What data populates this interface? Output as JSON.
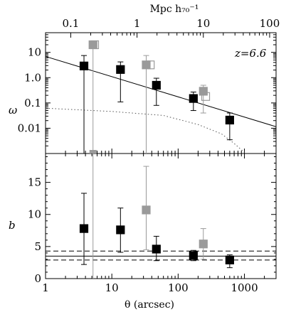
{
  "chart_data": [
    {
      "type": "scatter",
      "panel": "top",
      "title": "",
      "annotation": "z=6.6",
      "xlabel_top": "Mpc h₇₀⁻¹",
      "ylabel": "ω",
      "x_scale": "log",
      "y_scale": "log",
      "xlim_arcsec": [
        1,
        3000
      ],
      "ylim": [
        0.001,
        60
      ],
      "x_top_ticks": [
        "0.1",
        "1",
        "10",
        "100"
      ],
      "y_ticks": [
        "10",
        "1.0",
        "0.1",
        "0.01"
      ],
      "series": [
        {
          "marker": "filled-square-black",
          "points": [
            {
              "x": 3.8,
              "y": 2.9,
              "yerr_lo": 0.001,
              "yerr_hi": 7.5
            },
            {
              "x": 13.5,
              "y": 2.1,
              "yerr_lo": 0.11,
              "yerr_hi": 4.2
            },
            {
              "x": 47,
              "y": 0.5,
              "yerr_lo": 0.08,
              "yerr_hi": 0.95
            },
            {
              "x": 170,
              "y": 0.15,
              "yerr_lo": 0.05,
              "yerr_hi": 0.27
            },
            {
              "x": 600,
              "y": 0.021,
              "yerr_lo": 0.0035,
              "yerr_hi": 0.04
            }
          ]
        },
        {
          "marker": "filled-square-gray",
          "points": [
            {
              "x": 5.2,
              "y": 20,
              "yerr_lo": 0.001,
              "yerr_hi": 20
            },
            {
              "x": 33,
              "y": 3.2,
              "yerr_lo": 0.001,
              "yerr_hi": 7.5
            },
            {
              "x": 240,
              "y": 0.29,
              "yerr_lo": 0.04,
              "yerr_hi": 0.5
            }
          ]
        },
        {
          "marker": "open-square-gray",
          "points": [
            {
              "x": 5.5,
              "y": 20
            },
            {
              "x": 38,
              "y": 3.2
            },
            {
              "x": 260,
              "y": 0.18
            }
          ]
        }
      ],
      "lines": [
        {
          "style": "solid",
          "from": [
            1,
            6.9
          ],
          "to": [
            3000,
            0.0115
          ]
        },
        {
          "style": "dotted",
          "points": [
            [
              1,
              0.062
            ],
            [
              10,
              0.046
            ],
            [
              60,
              0.032
            ],
            [
              200,
              0.014
            ],
            [
              450,
              0.006
            ],
            [
              700,
              0.0025
            ],
            [
              1000,
              0.0011
            ]
          ]
        }
      ]
    },
    {
      "type": "scatter",
      "panel": "bottom",
      "title": "",
      "xlabel": "θ (arcsec)",
      "ylabel": "b",
      "x_scale": "log",
      "xlim_arcsec": [
        1,
        3000
      ],
      "ylim": [
        0,
        19.5
      ],
      "x_ticks": [
        "1",
        "10",
        "100",
        "1000"
      ],
      "y_ticks": [
        "0",
        "5",
        "10",
        "15"
      ],
      "series": [
        {
          "marker": "filled-square-black",
          "points": [
            {
              "x": 3.8,
              "y": 7.8,
              "yerr_lo": 2.2,
              "yerr_hi": 13.3
            },
            {
              "x": 13.5,
              "y": 7.6,
              "yerr_lo": 4.1,
              "yerr_hi": 11.0
            },
            {
              "x": 47,
              "y": 4.6,
              "yerr_lo": 2.8,
              "yerr_hi": 6.6
            },
            {
              "x": 170,
              "y": 3.6,
              "yerr_lo": 2.8,
              "yerr_hi": 4.4
            },
            {
              "x": 600,
              "y": 2.9,
              "yerr_lo": 1.7,
              "yerr_hi": 3.7
            }
          ]
        },
        {
          "marker": "filled-square-gray",
          "points": [
            {
              "x": 33,
              "y": 10.7,
              "yerr_lo": 4.5,
              "yerr_hi": 17.5
            },
            {
              "x": 240,
              "y": 5.4,
              "yerr_lo": 3.0,
              "yerr_hi": 7.8
            }
          ]
        }
      ],
      "lines": [
        {
          "style": "solid",
          "y": 3.5
        },
        {
          "style": "dashed",
          "y": 4.3
        },
        {
          "style": "dashed",
          "y": 2.9
        }
      ]
    }
  ]
}
